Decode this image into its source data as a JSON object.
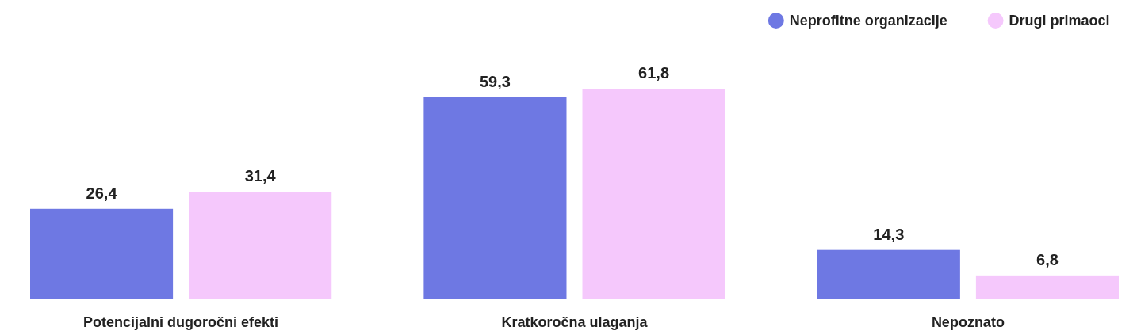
{
  "chart_data": {
    "type": "bar",
    "categories": [
      "Potencijalni dugoročni efekti",
      "Kratkoročna ulaganja",
      "Nepoznato"
    ],
    "series": [
      {
        "name": "Neprofitne organizacije",
        "color": "#6e78e3",
        "values": [
          26.4,
          59.3,
          14.3
        ],
        "value_labels": [
          "26,4",
          "59,3",
          "14,3"
        ]
      },
      {
        "name": "Drugi primaoci",
        "color": "#f5c8fc",
        "values": [
          31.4,
          61.8,
          6.8
        ],
        "value_labels": [
          "31,4",
          "61,8",
          "6,8"
        ]
      }
    ],
    "legend": "top right",
    "grid": false
  }
}
